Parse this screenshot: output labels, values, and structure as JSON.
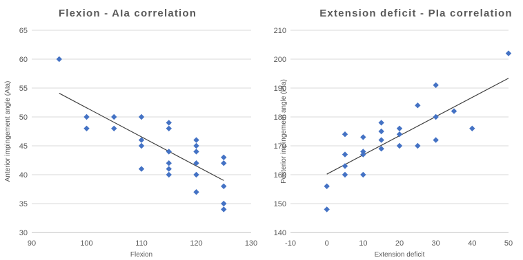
{
  "chart_data": [
    {
      "type": "scatter",
      "title": "Flexion - AIa correlation",
      "xlabel": "Flexion",
      "ylabel": "Anterior impingement angle (AIa)",
      "xlim": [
        90,
        130
      ],
      "ylim": [
        30,
        65
      ],
      "x_ticks": [
        "90",
        "100",
        "110",
        "120",
        "130"
      ],
      "y_ticks": [
        "30",
        "35",
        "40",
        "45",
        "50",
        "55",
        "60",
        "65"
      ],
      "grid": "horizontal",
      "marker_color": "#4472c4",
      "trendline": {
        "type": "linear",
        "x": [
          95,
          125
        ],
        "y": [
          54.1,
          39.0
        ]
      },
      "series": [
        {
          "points": [
            [
              95,
              60
            ],
            [
              100,
              50
            ],
            [
              100,
              48
            ],
            [
              105,
              50
            ],
            [
              105,
              48
            ],
            [
              110,
              50
            ],
            [
              110,
              46
            ],
            [
              110,
              45
            ],
            [
              110,
              41
            ],
            [
              115,
              49
            ],
            [
              115,
              48
            ],
            [
              115,
              44
            ],
            [
              115,
              42
            ],
            [
              115,
              41
            ],
            [
              115,
              40
            ],
            [
              120,
              46
            ],
            [
              120,
              45
            ],
            [
              120,
              44
            ],
            [
              120,
              42
            ],
            [
              120,
              40
            ],
            [
              120,
              37
            ],
            [
              125,
              43
            ],
            [
              125,
              42
            ],
            [
              125,
              38
            ],
            [
              125,
              35
            ],
            [
              125,
              34
            ]
          ]
        }
      ]
    },
    {
      "type": "scatter",
      "title": "Extension deficit - PIa correlation",
      "xlabel": "Extension deficit",
      "ylabel": "Posterior impingement angle (PIa)",
      "xlim": [
        -10,
        50
      ],
      "ylim": [
        140,
        210
      ],
      "x_ticks": [
        "-10",
        "0",
        "10",
        "20",
        "30",
        "40",
        "50"
      ],
      "y_ticks": [
        "140",
        "150",
        "160",
        "170",
        "180",
        "190",
        "200",
        "210"
      ],
      "grid": "horizontal",
      "marker_color": "#4472c4",
      "trendline": {
        "type": "linear",
        "x": [
          0,
          50
        ],
        "y": [
          160.2,
          193.4
        ]
      },
      "series": [
        {
          "points": [
            [
              0,
              156
            ],
            [
              0,
              148
            ],
            [
              5,
              174
            ],
            [
              5,
              167
            ],
            [
              5,
              163
            ],
            [
              5,
              160
            ],
            [
              10,
              173
            ],
            [
              10,
              168
            ],
            [
              10,
              167
            ],
            [
              10,
              160
            ],
            [
              15,
              178
            ],
            [
              15,
              175
            ],
            [
              15,
              172
            ],
            [
              15,
              169
            ],
            [
              20,
              176
            ],
            [
              20,
              174
            ],
            [
              20,
              170
            ],
            [
              25,
              184
            ],
            [
              25,
              170
            ],
            [
              30,
              191
            ],
            [
              30,
              180
            ],
            [
              30,
              172
            ],
            [
              35,
              182
            ],
            [
              40,
              176
            ],
            [
              50,
              202
            ]
          ]
        }
      ]
    }
  ]
}
